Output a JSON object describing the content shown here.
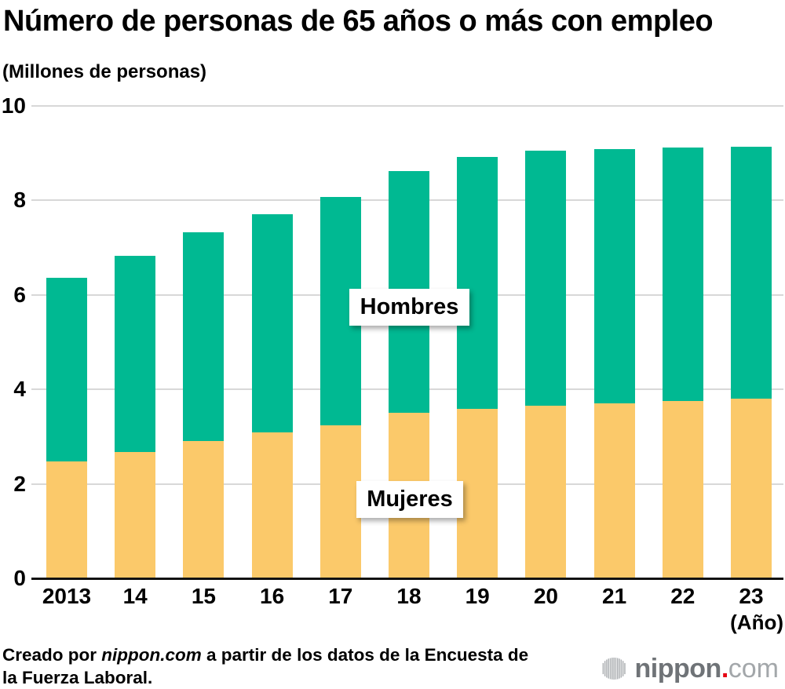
{
  "header": {
    "title": "Número de personas de 65 años o más con empleo",
    "unit_label": "(Millones de personas)"
  },
  "chart_data": {
    "type": "bar",
    "stacked": true,
    "title": "Número de personas de 65 años o más con empleo",
    "ylabel": "(Millones de personas)",
    "xlabel": "(Año)",
    "categories": [
      "2013",
      "14",
      "15",
      "16",
      "17",
      "18",
      "19",
      "20",
      "21",
      "22",
      "23"
    ],
    "series": [
      {
        "name": "Mujeres",
        "color": "#fbc96a",
        "values": [
          2.47,
          2.67,
          2.9,
          3.09,
          3.24,
          3.5,
          3.59,
          3.66,
          3.71,
          3.75,
          3.81
        ]
      },
      {
        "name": "Hombres",
        "color": "#00b992",
        "values": [
          3.9,
          4.15,
          4.42,
          4.61,
          4.83,
          5.12,
          5.33,
          5.4,
          5.38,
          5.37,
          5.33
        ]
      }
    ],
    "totals": [
      6.37,
      6.82,
      7.32,
      7.7,
      8.07,
      8.62,
      8.92,
      9.06,
      9.09,
      9.12,
      9.14
    ],
    "ylim": [
      0,
      10
    ],
    "yticks": [
      0,
      2,
      4,
      6,
      8,
      10
    ],
    "grid": true,
    "legend": "inline-labels-on-bars"
  },
  "colors": {
    "men": "#00b992",
    "women": "#fbc96a",
    "gridline": "#d8d8d8",
    "axis": "#111111",
    "logo_red": "#e60012",
    "logo_gray": "#6f7377",
    "logo_light_gray": "#a3a7aa"
  },
  "footer": {
    "source_prefix": "Creado por ",
    "source_brand": "nippon.com",
    "source_line1_suffix": " a partir de los datos de la Encuesta de",
    "source_line2": "la Fuerza Laboral.",
    "logo": {
      "bold": "nippon",
      "dot": ".",
      "light": "com"
    }
  }
}
